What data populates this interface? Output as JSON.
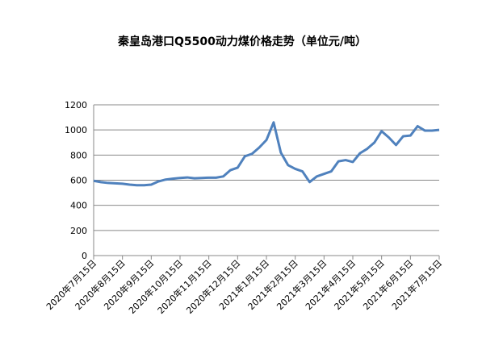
{
  "chart_data": {
    "type": "line",
    "title": "秦皇岛港口Q5500动力煤价格走势（单位元/吨）",
    "categories": [
      "2020年7月15日",
      null,
      null,
      null,
      "2020年8月15日",
      null,
      null,
      null,
      "2020年9月15日",
      null,
      null,
      null,
      "2020年10月15日",
      null,
      null,
      null,
      "2020年11月15日",
      null,
      null,
      null,
      "2020年12月15日",
      null,
      null,
      null,
      "2021年1月15日",
      null,
      null,
      null,
      "2021年2月15日",
      null,
      null,
      null,
      "2021年3月15日",
      null,
      null,
      null,
      "2021年4月15日",
      null,
      null,
      null,
      "2021年5月15日",
      null,
      null,
      null,
      "2021年6月15日",
      null,
      null,
      null,
      "2021年7月15日"
    ],
    "values": [
      595,
      585,
      578,
      575,
      572,
      565,
      560,
      560,
      565,
      590,
      605,
      612,
      618,
      622,
      615,
      618,
      620,
      620,
      630,
      680,
      700,
      790,
      810,
      860,
      920,
      1060,
      820,
      720,
      690,
      670,
      585,
      630,
      650,
      670,
      750,
      760,
      745,
      815,
      850,
      900,
      990,
      940,
      880,
      950,
      955,
      1030,
      995,
      995,
      1000
    ],
    "color": "#4f81bd",
    "ylim": [
      0,
      1200
    ],
    "yticks": [
      0,
      200,
      400,
      600,
      800,
      1000,
      1200
    ],
    "grid": true
  }
}
